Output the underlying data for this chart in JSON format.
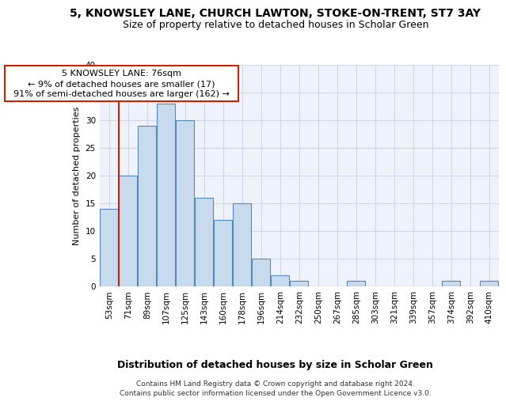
{
  "title": "5, KNOWSLEY LANE, CHURCH LAWTON, STOKE-ON-TRENT, ST7 3AY",
  "subtitle": "Size of property relative to detached houses in Scholar Green",
  "xlabel": "Distribution of detached houses by size in Scholar Green",
  "ylabel": "Number of detached properties",
  "footnote1": "Contains HM Land Registry data © Crown copyright and database right 2024.",
  "footnote2": "Contains public sector information licensed under the Open Government Licence v3.0.",
  "annotation_line1": "5 KNOWSLEY LANE: 76sqm",
  "annotation_line2": "← 9% of detached houses are smaller (17)",
  "annotation_line3": "91% of semi-detached houses are larger (162) →",
  "bar_labels": [
    "53sqm",
    "71sqm",
    "89sqm",
    "107sqm",
    "125sqm",
    "143sqm",
    "160sqm",
    "178sqm",
    "196sqm",
    "214sqm",
    "232sqm",
    "250sqm",
    "267sqm",
    "285sqm",
    "303sqm",
    "321sqm",
    "339sqm",
    "357sqm",
    "374sqm",
    "392sqm",
    "410sqm"
  ],
  "bar_values": [
    14,
    20,
    29,
    33,
    30,
    16,
    12,
    15,
    5,
    2,
    1,
    0,
    0,
    1,
    0,
    0,
    0,
    0,
    1,
    0,
    1
  ],
  "bar_color": "#c8daee",
  "bar_edge_color": "#5588bb",
  "red_line_color": "#cc2200",
  "red_line_x": 0.5,
  "ann_edge_color": "#cc2200",
  "grid_color": "#d0d8e8",
  "bg_color": "#ffffff",
  "plot_bg_color": "#eef2fa",
  "ylim_max": 40,
  "yticks": [
    0,
    5,
    10,
    15,
    20,
    25,
    30,
    35,
    40
  ],
  "title_fontsize": 10,
  "subtitle_fontsize": 9,
  "ylabel_fontsize": 8,
  "xlabel_fontsize": 9,
  "tick_fontsize": 7.5,
  "ann_fontsize": 8,
  "footnote_fontsize": 6.5
}
